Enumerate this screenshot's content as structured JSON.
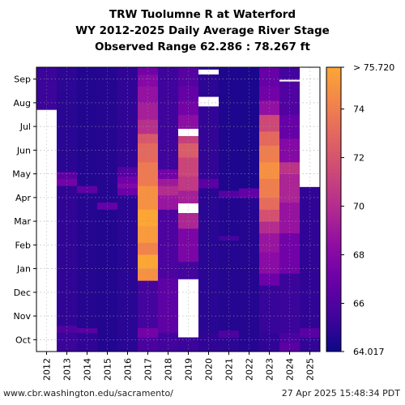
{
  "chart_data": {
    "type": "heatmap",
    "title": "TRW Tuolumne R at Waterford",
    "subtitle": "WY 2012-2025 Daily Average River Stage",
    "range_label": "Observed Range 62.286 : 78.267 ft",
    "x_categories": [
      "2012",
      "2013",
      "2014",
      "2015",
      "2016",
      "2017",
      "2018",
      "2019",
      "2020",
      "2021",
      "2022",
      "2023",
      "2024",
      "2025"
    ],
    "y_tick_labels": [
      "Oct",
      "Nov",
      "Dec",
      "Jan",
      "Feb",
      "Mar",
      "Apr",
      "May",
      "Jun",
      "Jul",
      "Aug",
      "Sep"
    ],
    "colorbar": {
      "min": 64.017,
      "max": 75.72,
      "min_label": "64.017",
      "max_label": "> 75.720",
      "ticks": [
        "66",
        "68",
        "70",
        "72",
        "74"
      ],
      "colormap": "plasma"
    },
    "grid": true,
    "missing_color": "#ffffff",
    "missing_periods": [
      {
        "year": "2012",
        "from_month": 0,
        "to_month": 10.2
      },
      {
        "year": "2019",
        "from_month": 0.6,
        "to_month": 3.05
      },
      {
        "year": "2019",
        "from_month": 5.85,
        "to_month": 6.25
      },
      {
        "year": "2019",
        "from_month": 9.1,
        "to_month": 9.4
      },
      {
        "year": "2020",
        "from_month": 10.35,
        "to_month": 10.75
      },
      {
        "year": "2020",
        "from_month": 11.7,
        "to_month": 11.9
      },
      {
        "year": "2024",
        "from_month": 11.4,
        "to_month": 11.47
      },
      {
        "year": "2025",
        "from_month": 6.95,
        "to_month": 12
      }
    ],
    "series": [
      {
        "year": "2012",
        "segments": [
          [
            10.2,
            12,
            65.3
          ]
        ]
      },
      {
        "year": "2013",
        "segments": [
          [
            0,
            0.8,
            65.3
          ],
          [
            0.8,
            1.1,
            66.0
          ],
          [
            1.1,
            7.0,
            65.0
          ],
          [
            7.0,
            7.3,
            67.3
          ],
          [
            7.3,
            7.6,
            66.4
          ],
          [
            7.6,
            11.0,
            64.8
          ],
          [
            11.0,
            12,
            64.9
          ]
        ]
      },
      {
        "year": "2014",
        "segments": [
          [
            0,
            0.8,
            65.0
          ],
          [
            0.8,
            1.0,
            66.4
          ],
          [
            1.0,
            6.7,
            64.7
          ],
          [
            6.7,
            7.0,
            66.6
          ],
          [
            7.0,
            12,
            64.6
          ]
        ]
      },
      {
        "year": "2015",
        "segments": [
          [
            0,
            6.0,
            64.6
          ],
          [
            6.0,
            6.3,
            66.8
          ],
          [
            6.3,
            12,
            64.7
          ]
        ]
      },
      {
        "year": "2016",
        "segments": [
          [
            0,
            6.6,
            64.8
          ],
          [
            6.6,
            6.9,
            66.9
          ],
          [
            6.9,
            7.1,
            67.8
          ],
          [
            7.1,
            7.4,
            67.2
          ],
          [
            7.4,
            7.8,
            66.2
          ],
          [
            7.8,
            12,
            65.0
          ]
        ]
      },
      {
        "year": "2017",
        "segments": [
          [
            0,
            0.6,
            65.8
          ],
          [
            0.6,
            1.0,
            67.3
          ],
          [
            1.0,
            3.0,
            65.6
          ],
          [
            3.0,
            3.5,
            74.8
          ],
          [
            3.5,
            4.1,
            75.7
          ],
          [
            4.1,
            4.6,
            74.2
          ],
          [
            4.6,
            5.3,
            75.2
          ],
          [
            5.3,
            6.0,
            75.7
          ],
          [
            6.0,
            7.0,
            74.8
          ],
          [
            7.0,
            8.0,
            73.8
          ],
          [
            8.0,
            8.8,
            73.0
          ],
          [
            8.8,
            9.2,
            72.2
          ],
          [
            9.2,
            9.8,
            70.2
          ],
          [
            9.8,
            10.5,
            69.3
          ],
          [
            10.5,
            11.2,
            68.6
          ],
          [
            11.2,
            11.7,
            68.0
          ],
          [
            11.7,
            12,
            67.2
          ]
        ]
      },
      {
        "year": "2018",
        "segments": [
          [
            0,
            0.8,
            65.5
          ],
          [
            0.8,
            3.1,
            66.5
          ],
          [
            3.1,
            6.0,
            65.9
          ],
          [
            6.0,
            6.6,
            68.8
          ],
          [
            6.6,
            7.0,
            70.0
          ],
          [
            7.0,
            7.3,
            69.0
          ],
          [
            7.3,
            7.7,
            67.3
          ],
          [
            7.7,
            12,
            65.4
          ]
        ]
      },
      {
        "year": "2019",
        "segments": [
          [
            0,
            0.6,
            65.3
          ],
          [
            3.05,
            3.8,
            65.6
          ],
          [
            3.8,
            5.2,
            67.6
          ],
          [
            5.2,
            5.85,
            69.7
          ],
          [
            6.25,
            6.8,
            69.3
          ],
          [
            6.8,
            7.4,
            70.6
          ],
          [
            7.4,
            8.2,
            71.2
          ],
          [
            8.2,
            8.8,
            72.4
          ],
          [
            8.8,
            9.1,
            71.0
          ],
          [
            9.4,
            10.0,
            68.3
          ],
          [
            10.0,
            10.6,
            67.3
          ],
          [
            10.6,
            11.2,
            66.7
          ],
          [
            11.2,
            12,
            66.2
          ]
        ]
      },
      {
        "year": "2020",
        "segments": [
          [
            0,
            0.8,
            65.0
          ],
          [
            0.8,
            6.9,
            64.8
          ],
          [
            6.9,
            7.3,
            66.4
          ],
          [
            7.3,
            10.35,
            65.1
          ],
          [
            10.75,
            11.7,
            64.9
          ],
          [
            11.9,
            12,
            65.0
          ]
        ]
      },
      {
        "year": "2021",
        "segments": [
          [
            0,
            0.6,
            64.9
          ],
          [
            0.6,
            0.9,
            65.9
          ],
          [
            0.9,
            4.7,
            64.7
          ],
          [
            4.7,
            4.9,
            65.6
          ],
          [
            4.9,
            6.5,
            64.6
          ],
          [
            6.5,
            6.8,
            66.2
          ],
          [
            6.8,
            12,
            64.5
          ]
        ]
      },
      {
        "year": "2022",
        "segments": [
          [
            0,
            6.5,
            64.7
          ],
          [
            6.5,
            6.9,
            66.7
          ],
          [
            6.9,
            12,
            64.4
          ]
        ]
      },
      {
        "year": "2023",
        "segments": [
          [
            0,
            0.8,
            65.0
          ],
          [
            0.8,
            2.8,
            65.2
          ],
          [
            2.8,
            3.3,
            67.0
          ],
          [
            3.3,
            4.2,
            68.2
          ],
          [
            4.2,
            5.0,
            68.8
          ],
          [
            5.0,
            5.5,
            70.0
          ],
          [
            5.5,
            6.0,
            71.8
          ],
          [
            6.0,
            6.5,
            73.1
          ],
          [
            6.5,
            7.3,
            74.0
          ],
          [
            7.3,
            8.0,
            74.8
          ],
          [
            8.0,
            8.7,
            74.0
          ],
          [
            8.7,
            9.3,
            73.0
          ],
          [
            9.3,
            10.0,
            71.4
          ],
          [
            10.0,
            10.6,
            68.5
          ],
          [
            10.6,
            11.2,
            67.2
          ],
          [
            11.2,
            12,
            66.8
          ]
        ]
      },
      {
        "year": "2024",
        "segments": [
          [
            0,
            0.4,
            66.4
          ],
          [
            0.4,
            0.8,
            65.8
          ],
          [
            0.8,
            3.3,
            65.3
          ],
          [
            3.3,
            5.0,
            67.2
          ],
          [
            5.0,
            6.3,
            68.7
          ],
          [
            6.3,
            7.5,
            69.6
          ],
          [
            7.5,
            8.0,
            70.4
          ],
          [
            8.0,
            9.0,
            68.0
          ],
          [
            9.0,
            10.0,
            66.8
          ],
          [
            10.0,
            11.4,
            66.0
          ],
          [
            11.47,
            12,
            65.6
          ]
        ]
      },
      {
        "year": "2025",
        "segments": [
          [
            0,
            0.6,
            65.1
          ],
          [
            0.6,
            1.0,
            66.3
          ],
          [
            1.0,
            6.95,
            65.0
          ]
        ]
      }
    ]
  },
  "footer": {
    "source_url": "www.cbr.washington.edu/sacramento/",
    "timestamp": "27 Apr 2025 15:48:34 PDT"
  }
}
